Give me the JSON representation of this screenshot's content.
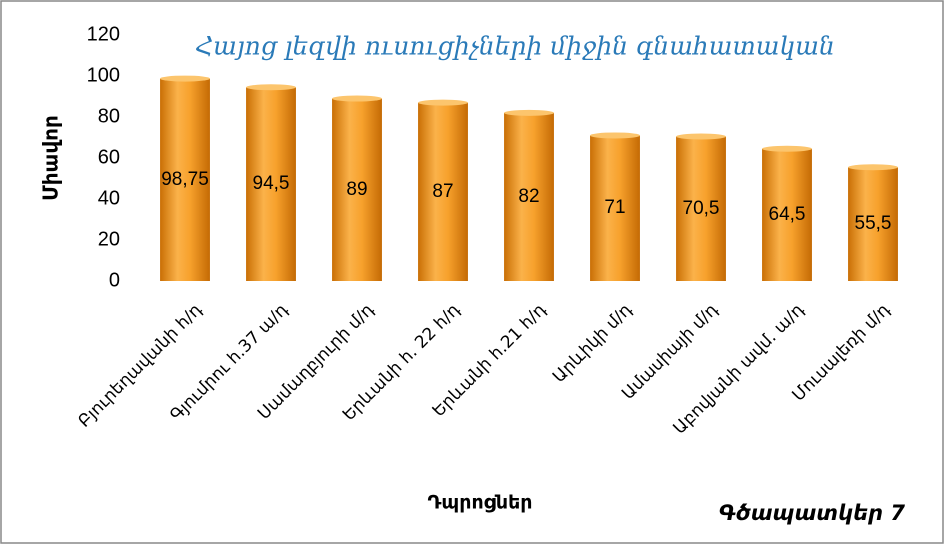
{
  "chart_data": {
    "type": "bar",
    "title": "Հայոց լեզվի ուսուցիչների միջին գնահատական",
    "y_label": "Միավոր",
    "x_label": "Դպրոցներ",
    "annotation": "Գծապատկեր 7",
    "categories": [
      "Բյուրեղավանի  հ/դ",
      "Գյումրու  հ.37 ա/դ",
      "Սամաղբյուրի  մ/դ",
      "Երևանի  հ. 22 հ/դ",
      "Երևանի  հ.21 հ/դ",
      "Արևիկի  մ/դ",
      "Ամասիայի  մ/դ",
      "Աբովյանի  ավմ. ա/դ",
      "Մուսալեռի մ/դ"
    ],
    "values": [
      98.75,
      94.5,
      89,
      87,
      82,
      71,
      70.5,
      64.5,
      55.5
    ],
    "value_labels": [
      "98,75",
      "94,5",
      "89",
      "87",
      "82",
      "71",
      "70,5",
      "64,5",
      "55,5"
    ],
    "color": "#f39c1f",
    "ylim": [
      0,
      120
    ],
    "yticks": [
      0,
      20,
      40,
      60,
      80,
      100,
      120
    ],
    "grid": false
  }
}
